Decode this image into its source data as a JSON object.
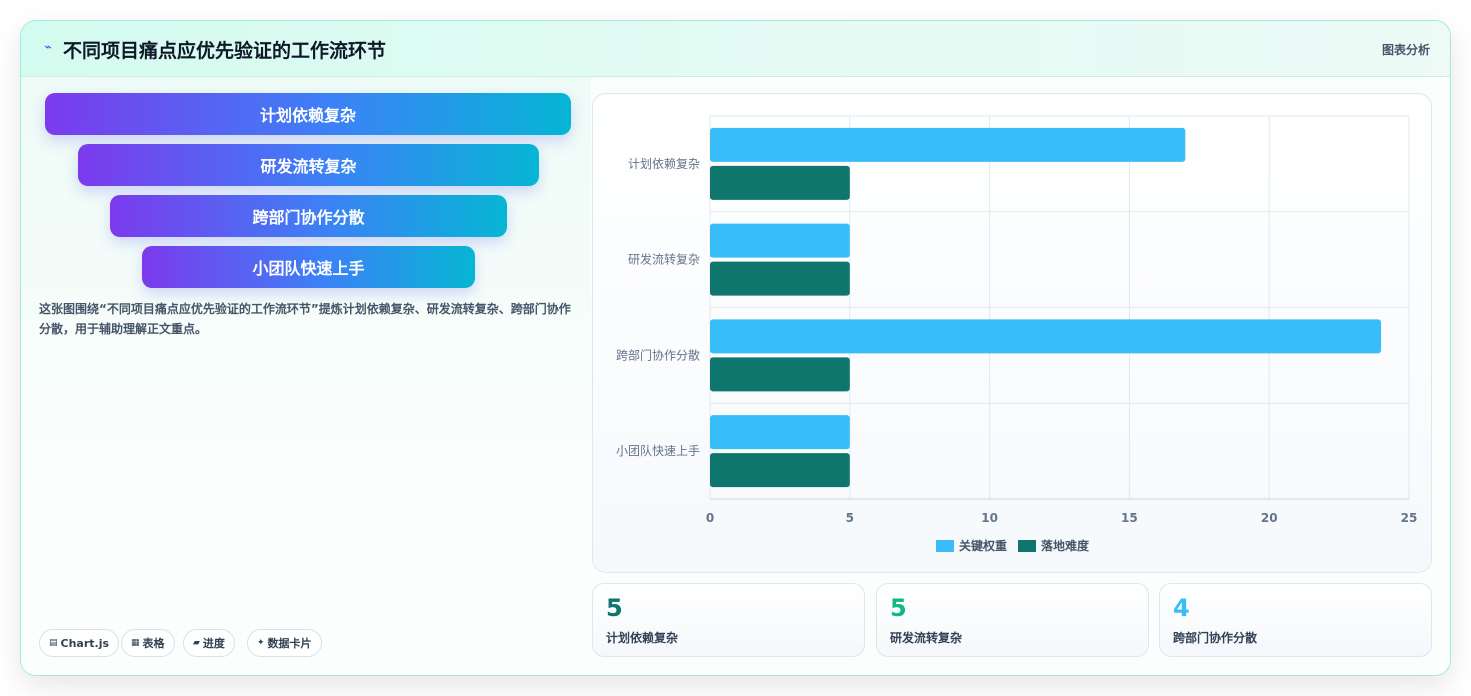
{
  "header": {
    "title": "不同项目痛点应优先验证的工作流环节",
    "tag": "图表分析"
  },
  "funnel": [
    "计划依赖复杂",
    "研发流转复杂",
    "跨部门协作分散",
    "小团队快速上手"
  ],
  "description": "这张图围绕“不同项目痛点应优先验证的工作流环节”提炼计划依赖复杂、研发流转复杂、跨部门协作分散，用于辅助理解正文重点。",
  "pills": [
    {
      "icon": "chart-icon",
      "glyph": "▤",
      "label": "Chart.js"
    },
    {
      "icon": "table-icon",
      "glyph": "▦",
      "label": "表格"
    },
    {
      "icon": "progress-icon",
      "glyph": "▰",
      "label": "进度"
    },
    {
      "icon": "sparkle-icon",
      "glyph": "✦",
      "label": "数据卡片"
    }
  ],
  "stats": [
    {
      "value": "5",
      "label": "计划依赖复杂",
      "color": "#0f766e"
    },
    {
      "value": "5",
      "label": "研发流转复杂",
      "color": "#10b981"
    },
    {
      "value": "4",
      "label": "跨部门协作分散",
      "color": "#38bdf8"
    }
  ],
  "chart_data": {
    "type": "bar",
    "orientation": "horizontal",
    "categories": [
      "计划依赖复杂",
      "研发流转复杂",
      "跨部门协作分散",
      "小团队快速上手"
    ],
    "series": [
      {
        "name": "关键权重",
        "values": [
          17,
          5,
          24,
          5
        ],
        "color": "#38bdf8"
      },
      {
        "name": "落地难度",
        "values": [
          5,
          5,
          5,
          5
        ],
        "color": "#0f766e"
      }
    ],
    "xlim": [
      0,
      25
    ],
    "xticks": [
      "0",
      "5",
      "10",
      "15",
      "20",
      "25"
    ],
    "grid": true,
    "legend": "bottom"
  }
}
